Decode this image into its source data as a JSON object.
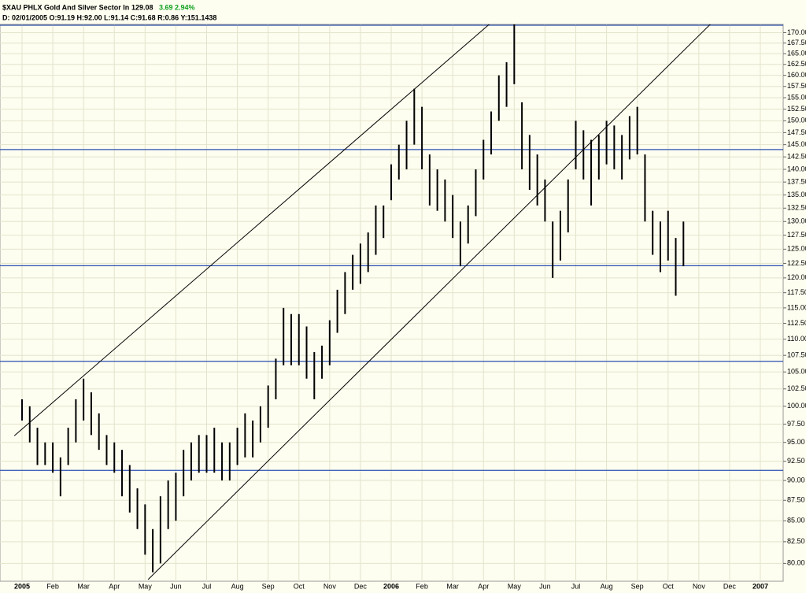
{
  "header": {
    "symbol": "$XAU PHLX Gold And Silver Sector In",
    "last": "129.08",
    "change": "3.69",
    "change_pct": "2.94%",
    "info": "D: 02/01/2005 O:91.19 H:92.00 L:91.14 C:91.68 R:0.86 Y:151.1438"
  },
  "chart_data": {
    "type": "hilo",
    "log_scale": true,
    "grid": true,
    "color": "#000000",
    "line_color": "#2a4fb0",
    "categories": [
      "2005",
      null,
      null,
      null,
      "Feb",
      null,
      null,
      null,
      "Mar",
      null,
      null,
      null,
      "Apr",
      null,
      null,
      null,
      "May",
      null,
      null,
      null,
      "Jun",
      null,
      null,
      null,
      "Jul",
      null,
      null,
      null,
      "Aug",
      null,
      null,
      null,
      "Sep",
      null,
      null,
      null,
      "Oct",
      null,
      null,
      null,
      "Nov",
      null,
      null,
      null,
      "Dec",
      null,
      null,
      null,
      "2006",
      null,
      null,
      null,
      "Feb",
      null,
      null,
      null,
      "Mar",
      null,
      null,
      null,
      "Apr",
      null,
      null,
      null,
      "May",
      null,
      null,
      null,
      "Jun",
      null,
      null,
      null,
      "Jul",
      null,
      null,
      null,
      "Aug",
      null,
      null,
      null,
      "Sep",
      null,
      null,
      null,
      "Oct",
      null,
      null,
      null,
      "Nov",
      null,
      null,
      null,
      "Dec",
      null,
      null,
      null,
      "2007"
    ],
    "high": [
      101,
      100,
      97,
      95,
      95,
      93,
      97,
      101,
      104,
      102,
      99,
      96,
      95,
      94,
      92,
      89,
      87,
      84,
      88,
      90,
      91,
      94,
      95,
      96,
      96,
      97,
      95,
      95,
      97,
      99,
      98,
      100,
      103,
      107,
      115,
      114,
      114,
      112,
      108,
      109,
      113,
      118,
      121,
      124,
      126,
      128,
      133,
      133,
      141,
      145,
      150,
      157,
      153,
      143,
      140,
      138,
      135,
      130,
      133,
      140,
      146,
      152,
      160,
      163,
      172,
      154,
      147,
      143,
      138,
      130,
      132,
      138,
      150,
      148,
      146,
      147,
      150,
      149,
      147,
      151,
      153,
      143,
      132,
      130,
      132,
      127,
      130,
      null,
      null,
      null,
      null,
      null,
      null,
      null,
      null,
      null,
      null
    ],
    "low": [
      98,
      95,
      92,
      92,
      91,
      88,
      92,
      95,
      98,
      96,
      94,
      92,
      91,
      88,
      86,
      84,
      81,
      79,
      80,
      84,
      85,
      88,
      90,
      91,
      91,
      91,
      90,
      90,
      92,
      93,
      93,
      95,
      97,
      101,
      106,
      106,
      106,
      104,
      101,
      104,
      106,
      111,
      114,
      118,
      119,
      121,
      124,
      127,
      134,
      138,
      140,
      145,
      140,
      133,
      132,
      130,
      127,
      122,
      126,
      131,
      138,
      143,
      150,
      153,
      158,
      140,
      136,
      133,
      130,
      120,
      123,
      128,
      140,
      138,
      133,
      138,
      141,
      140,
      138,
      142,
      143,
      130,
      124,
      121,
      123,
      117,
      122,
      null,
      null,
      null,
      null,
      null,
      null,
      null,
      null,
      null,
      null
    ],
    "ylim": [
      78,
      172
    ],
    "yticks": [
      {
        "value": 80,
        "label": "80.00"
      },
      {
        "value": 82.5,
        "label": "82.50"
      },
      {
        "value": 85,
        "label": "85.00"
      },
      {
        "value": 87.5,
        "label": "87.50"
      },
      {
        "value": 90,
        "label": "90.00"
      },
      {
        "value": 92.5,
        "label": "92.50"
      },
      {
        "value": 95,
        "label": "95.00"
      },
      {
        "value": 97.5,
        "label": "97.50"
      },
      {
        "value": 100,
        "label": "100.00"
      },
      {
        "value": 102.5,
        "label": "102.50"
      },
      {
        "value": 105,
        "label": "105.00"
      },
      {
        "value": 107.5,
        "label": "107.50"
      },
      {
        "value": 110,
        "label": "110.00"
      },
      {
        "value": 112.5,
        "label": "112.50"
      },
      {
        "value": 115,
        "label": "115.00"
      },
      {
        "value": 117.5,
        "label": "117.50"
      },
      {
        "value": 120,
        "label": "120.00"
      },
      {
        "value": 122.5,
        "label": "122.50"
      },
      {
        "value": 125,
        "label": "125.00"
      },
      {
        "value": 127.5,
        "label": "127.50"
      },
      {
        "value": 130,
        "label": "130.00"
      },
      {
        "value": 132.5,
        "label": "132.50"
      },
      {
        "value": 135,
        "label": "135.00"
      },
      {
        "value": 137.5,
        "label": "137.50"
      },
      {
        "value": 140,
        "label": "140.00"
      },
      {
        "value": 142.5,
        "label": "142.50"
      },
      {
        "value": 145,
        "label": "145.00"
      },
      {
        "value": 147.5,
        "label": "147.50"
      },
      {
        "value": 150,
        "label": "150.00"
      },
      {
        "value": 152.5,
        "label": "152.50"
      },
      {
        "value": 155,
        "label": "155.00"
      },
      {
        "value": 157.5,
        "label": "157.50"
      },
      {
        "value": 160,
        "label": "160.00"
      },
      {
        "value": 162.5,
        "label": "162.50"
      },
      {
        "value": 165,
        "label": "165.00"
      },
      {
        "value": 167.5,
        "label": "167.50"
      },
      {
        "value": 170,
        "label": "170.00"
      }
    ],
    "hlines": [
      171.8,
      144,
      122.1,
      106.6,
      91.3
    ],
    "trendlines": [
      {
        "x": [
          -1,
          61.1
        ],
        "y": [
          95.9,
          172.6
        ]
      },
      {
        "x": [
          16.4,
          89.8
        ],
        "y": [
          78.2,
          172.6
        ]
      }
    ]
  }
}
